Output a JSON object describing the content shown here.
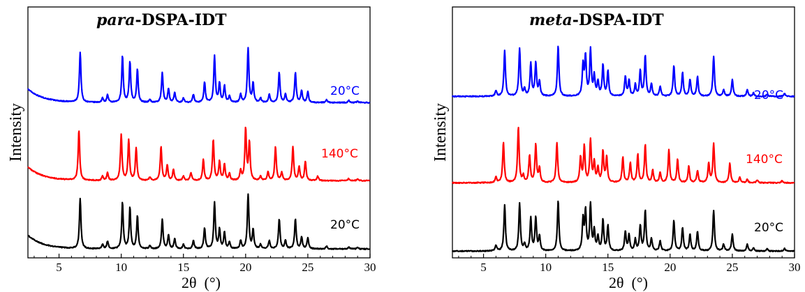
{
  "chart_data": [
    {
      "type": "line",
      "title_italic": "para",
      "title_rest": "-DSPA-IDT",
      "xlabel": "2θ  (°)",
      "ylabel": "Intensity",
      "xlim": [
        2.5,
        30
      ],
      "x_ticks": [
        5,
        10,
        15,
        20,
        25,
        30
      ],
      "grid": false,
      "legend": "none",
      "series": [
        {
          "name": "20°C",
          "color": "#0000ff",
          "baseline": 0.06,
          "rise": [
            0.25,
            0.8
          ],
          "peaks": [
            [
              6.7,
              0.92
            ],
            [
              8.5,
              0.08
            ],
            [
              8.9,
              0.14
            ],
            [
              10.1,
              0.85
            ],
            [
              10.7,
              0.75
            ],
            [
              11.3,
              0.6
            ],
            [
              12.3,
              0.06
            ],
            [
              13.3,
              0.55
            ],
            [
              13.8,
              0.25
            ],
            [
              14.3,
              0.18
            ],
            [
              15.0,
              0.08
            ],
            [
              15.8,
              0.15
            ],
            [
              16.7,
              0.38
            ],
            [
              17.5,
              0.85
            ],
            [
              17.9,
              0.35
            ],
            [
              18.3,
              0.3
            ],
            [
              18.7,
              0.12
            ],
            [
              19.6,
              0.15
            ],
            [
              20.2,
              1.0
            ],
            [
              20.6,
              0.35
            ],
            [
              21.2,
              0.08
            ],
            [
              21.9,
              0.15
            ],
            [
              22.7,
              0.55
            ],
            [
              23.2,
              0.15
            ],
            [
              24.0,
              0.55
            ],
            [
              24.5,
              0.22
            ],
            [
              25.0,
              0.2
            ],
            [
              26.5,
              0.05
            ],
            [
              28.3,
              0.04
            ],
            [
              29.0,
              0.03
            ]
          ]
        },
        {
          "name": "140°C",
          "color": "#ff0000",
          "baseline": 0.06,
          "rise": [
            0.25,
            0.8
          ],
          "peaks": [
            [
              6.6,
              0.92
            ],
            [
              8.5,
              0.08
            ],
            [
              8.9,
              0.14
            ],
            [
              10.0,
              0.85
            ],
            [
              10.6,
              0.75
            ],
            [
              11.2,
              0.6
            ],
            [
              12.3,
              0.06
            ],
            [
              13.2,
              0.62
            ],
            [
              13.7,
              0.28
            ],
            [
              14.2,
              0.2
            ],
            [
              15.0,
              0.08
            ],
            [
              15.6,
              0.15
            ],
            [
              16.6,
              0.38
            ],
            [
              17.4,
              0.75
            ],
            [
              17.9,
              0.35
            ],
            [
              18.3,
              0.3
            ],
            [
              18.7,
              0.12
            ],
            [
              19.6,
              0.18
            ],
            [
              20.0,
              0.95
            ],
            [
              20.3,
              0.7
            ],
            [
              21.2,
              0.08
            ],
            [
              21.8,
              0.15
            ],
            [
              22.4,
              0.62
            ],
            [
              22.9,
              0.15
            ],
            [
              23.8,
              0.62
            ],
            [
              24.3,
              0.25
            ],
            [
              24.8,
              0.35
            ],
            [
              25.8,
              0.08
            ],
            [
              28.3,
              0.04
            ],
            [
              29.0,
              0.03
            ]
          ]
        },
        {
          "name": "20°C",
          "color": "#000000",
          "baseline": 0.06,
          "rise": [
            0.25,
            0.8
          ],
          "peaks": [
            [
              6.7,
              0.92
            ],
            [
              8.5,
              0.08
            ],
            [
              8.9,
              0.14
            ],
            [
              10.1,
              0.85
            ],
            [
              10.7,
              0.75
            ],
            [
              11.3,
              0.6
            ],
            [
              12.3,
              0.06
            ],
            [
              13.3,
              0.55
            ],
            [
              13.8,
              0.25
            ],
            [
              14.3,
              0.18
            ],
            [
              15.0,
              0.08
            ],
            [
              15.8,
              0.15
            ],
            [
              16.7,
              0.38
            ],
            [
              17.5,
              0.85
            ],
            [
              17.9,
              0.35
            ],
            [
              18.3,
              0.3
            ],
            [
              18.7,
              0.12
            ],
            [
              19.6,
              0.15
            ],
            [
              20.2,
              1.0
            ],
            [
              20.6,
              0.35
            ],
            [
              21.2,
              0.08
            ],
            [
              21.9,
              0.15
            ],
            [
              22.7,
              0.55
            ],
            [
              23.2,
              0.15
            ],
            [
              24.0,
              0.55
            ],
            [
              24.5,
              0.22
            ],
            [
              25.0,
              0.2
            ],
            [
              26.5,
              0.05
            ],
            [
              28.3,
              0.04
            ],
            [
              29.0,
              0.03
            ]
          ]
        }
      ]
    },
    {
      "type": "line",
      "title_italic": "meta",
      "title_rest": "-DSPA-IDT",
      "xlabel": "2θ  (°)",
      "ylabel": "Intensity",
      "xlim": [
        2.5,
        30
      ],
      "x_ticks": [
        5,
        10,
        15,
        20,
        25,
        30
      ],
      "grid": false,
      "legend": "none",
      "series": [
        {
          "name": "20°C",
          "color": "#0000ff",
          "baseline": 0.02,
          "rise": [
            0,
            0.8
          ],
          "peaks": [
            [
              6.0,
              0.1
            ],
            [
              6.7,
              0.82
            ],
            [
              7.9,
              0.85
            ],
            [
              8.3,
              0.12
            ],
            [
              8.8,
              0.58
            ],
            [
              9.2,
              0.6
            ],
            [
              9.5,
              0.25
            ],
            [
              11.0,
              0.9
            ],
            [
              13.0,
              0.55
            ],
            [
              13.2,
              0.7
            ],
            [
              13.6,
              0.82
            ],
            [
              13.9,
              0.35
            ],
            [
              14.2,
              0.25
            ],
            [
              14.6,
              0.55
            ],
            [
              15.0,
              0.45
            ],
            [
              16.4,
              0.35
            ],
            [
              16.7,
              0.28
            ],
            [
              17.2,
              0.2
            ],
            [
              17.6,
              0.45
            ],
            [
              18.0,
              0.72
            ],
            [
              18.5,
              0.22
            ],
            [
              19.2,
              0.18
            ],
            [
              20.3,
              0.55
            ],
            [
              21.0,
              0.42
            ],
            [
              21.6,
              0.3
            ],
            [
              22.2,
              0.35
            ],
            [
              23.5,
              0.72
            ],
            [
              24.3,
              0.12
            ],
            [
              25.0,
              0.3
            ],
            [
              26.2,
              0.12
            ],
            [
              26.7,
              0.06
            ],
            [
              27.8,
              0.04
            ],
            [
              29.2,
              0.05
            ]
          ]
        },
        {
          "name": "140°C",
          "color": "#ff0000",
          "baseline": 0.02,
          "rise": [
            0,
            0.8
          ],
          "peaks": [
            [
              6.0,
              0.1
            ],
            [
              6.6,
              0.72
            ],
            [
              7.8,
              1.0
            ],
            [
              8.2,
              0.12
            ],
            [
              8.7,
              0.48
            ],
            [
              9.2,
              0.68
            ],
            [
              9.5,
              0.25
            ],
            [
              10.9,
              0.72
            ],
            [
              12.8,
              0.45
            ],
            [
              13.1,
              0.65
            ],
            [
              13.6,
              0.75
            ],
            [
              13.9,
              0.35
            ],
            [
              14.2,
              0.25
            ],
            [
              14.6,
              0.55
            ],
            [
              14.9,
              0.45
            ],
            [
              16.2,
              0.45
            ],
            [
              16.8,
              0.35
            ],
            [
              17.4,
              0.5
            ],
            [
              18.0,
              0.68
            ],
            [
              18.6,
              0.22
            ],
            [
              19.2,
              0.18
            ],
            [
              19.9,
              0.58
            ],
            [
              20.6,
              0.42
            ],
            [
              21.5,
              0.3
            ],
            [
              22.2,
              0.22
            ],
            [
              23.1,
              0.35
            ],
            [
              23.5,
              0.7
            ],
            [
              24.8,
              0.35
            ],
            [
              25.6,
              0.1
            ],
            [
              26.2,
              0.06
            ],
            [
              27.0,
              0.05
            ],
            [
              29.0,
              0.04
            ]
          ]
        },
        {
          "name": "20°C",
          "color": "#000000",
          "baseline": 0.02,
          "rise": [
            0,
            0.8
          ],
          "peaks": [
            [
              6.0,
              0.1
            ],
            [
              6.7,
              0.82
            ],
            [
              7.9,
              0.85
            ],
            [
              8.3,
              0.12
            ],
            [
              8.8,
              0.58
            ],
            [
              9.2,
              0.6
            ],
            [
              9.5,
              0.25
            ],
            [
              11.0,
              0.9
            ],
            [
              13.0,
              0.55
            ],
            [
              13.2,
              0.7
            ],
            [
              13.6,
              0.82
            ],
            [
              13.9,
              0.35
            ],
            [
              14.2,
              0.25
            ],
            [
              14.6,
              0.55
            ],
            [
              15.0,
              0.45
            ],
            [
              16.4,
              0.35
            ],
            [
              16.7,
              0.28
            ],
            [
              17.2,
              0.2
            ],
            [
              17.6,
              0.45
            ],
            [
              18.0,
              0.72
            ],
            [
              18.5,
              0.22
            ],
            [
              19.2,
              0.18
            ],
            [
              20.3,
              0.55
            ],
            [
              21.0,
              0.42
            ],
            [
              21.6,
              0.3
            ],
            [
              22.2,
              0.35
            ],
            [
              23.5,
              0.72
            ],
            [
              24.3,
              0.12
            ],
            [
              25.0,
              0.3
            ],
            [
              26.2,
              0.12
            ],
            [
              26.7,
              0.06
            ],
            [
              27.8,
              0.04
            ],
            [
              29.2,
              0.05
            ]
          ]
        }
      ]
    }
  ]
}
